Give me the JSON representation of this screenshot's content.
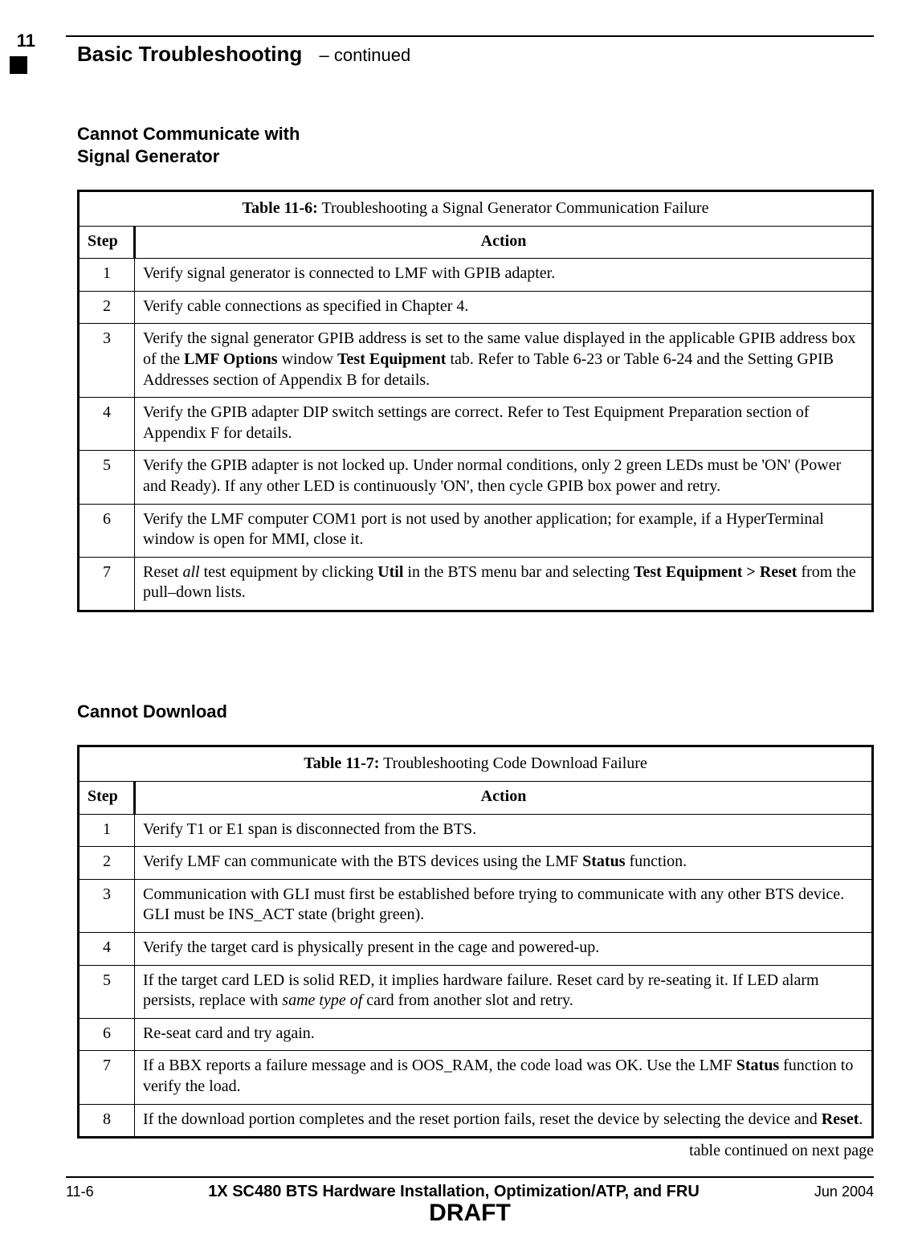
{
  "chapter_tab": "11",
  "running_head": {
    "title": "Basic Troubleshooting",
    "continued": "– continued"
  },
  "section1": {
    "heading_line1": "Cannot Communicate with",
    "heading_line2": "Signal Generator",
    "table": {
      "caption_bold": "Table 11-6:",
      "caption_rest": " Troubleshooting a Signal Generator Communication Failure",
      "col_step": "Step",
      "col_action": "Action",
      "rows": [
        {
          "step": "1",
          "plain": "Verify signal generator is connected to LMF with GPIB adapter."
        },
        {
          "step": "2",
          "plain": "Verify cable connections as specified in Chapter 4."
        },
        {
          "step": "3",
          "r3_a": "Verify the signal generator GPIB address is set to the same value displayed in the applicable GPIB address box of the ",
          "r3_b": "LMF Options",
          "r3_c": " window ",
          "r3_d": "Test Equipment",
          "r3_e": " tab. Refer to Table 6-23 or Table 6-24 and the Setting GPIB Addresses section of Appendix B for details."
        },
        {
          "step": "4",
          "plain": "Verify the GPIB adapter DIP switch settings are correct. Refer to Test Equipment Preparation section of Appendix F for details."
        },
        {
          "step": "5",
          "plain": "Verify the GPIB adapter is not locked up. Under normal conditions, only 2 green LEDs must be 'ON' (Power and Ready). If any other LED is continuously 'ON', then cycle GPIB box power and retry."
        },
        {
          "step": "6",
          "plain": "Verify the LMF computer COM1 port is not used by another application; for example, if a HyperTerminal window is open for MMI, close it."
        },
        {
          "step": "7",
          "r7_a": "Reset ",
          "r7_b": "all",
          "r7_c": " test equipment by clicking ",
          "r7_d": "Util",
          "r7_e": " in the BTS menu bar and selecting ",
          "r7_f": "Test Equipment > Reset",
          "r7_g": " from the pull–down lists."
        }
      ]
    }
  },
  "section2": {
    "heading": "Cannot Download",
    "table": {
      "caption_bold": "Table 11-7:",
      "caption_rest": " Troubleshooting Code Download Failure",
      "col_step": "Step",
      "col_action": "Action",
      "rows": [
        {
          "step": "1",
          "plain": "Verify T1 or E1 span is disconnected from the BTS."
        },
        {
          "step": "2",
          "r2_a": "Verify LMF can communicate with the BTS devices using the LMF ",
          "r2_b": "Status",
          "r2_c": " function."
        },
        {
          "step": "3",
          "plain": "Communication with GLI must first be established before trying to communicate with any other BTS device. GLI must be INS_ACT state (bright green)."
        },
        {
          "step": "4",
          "plain": "Verify the target card is physically present in the cage and powered-up."
        },
        {
          "step": "5",
          "r5_a": "If the target card LED is solid RED, it implies hardware failure. Reset card by re-seating it. If LED alarm persists, replace with ",
          "r5_b": "same type of",
          "r5_c": " card from another slot and retry."
        },
        {
          "step": "6",
          "plain": "Re-seat card and try again."
        },
        {
          "step": "7",
          "r7_a": "If a BBX reports a failure message and is OOS_RAM, the code load was OK. Use the LMF ",
          "r7_b": "Status",
          "r7_c": " function to verify the load."
        },
        {
          "step": "8",
          "r8_a": "If the download portion completes and the reset portion fails, reset the device by selecting the device and ",
          "r8_b": "Reset",
          "r8_c": "."
        }
      ]
    },
    "continued_note": "table continued on next page"
  },
  "footer": {
    "page_no": "11-6",
    "doc_title": "1X SC480 BTS Hardware Installation, Optimization/ATP, and FRU",
    "date": "Jun 2004",
    "draft": "DRAFT"
  }
}
